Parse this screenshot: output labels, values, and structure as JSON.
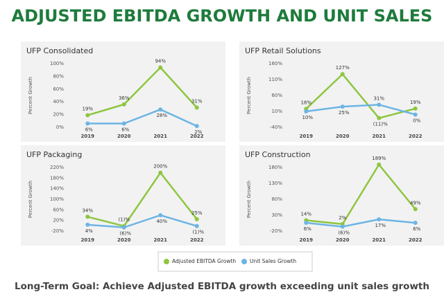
{
  "title": "ADJUSTED EBITDA GROWTH AND UNIT SALES",
  "footer": "Long-Term Goal: Achieve Adjusted EBITDA growth exceeding unit sales growth",
  "chart_data": [
    {
      "type": "line",
      "title": "UFP Consolidated",
      "ylabel": "Percent Growth",
      "categories": [
        "2019",
        "2020",
        "2021",
        "2022"
      ],
      "ylim": [
        0,
        100
      ],
      "yticks": [
        {
          "value": 0,
          "label": "0%"
        },
        {
          "value": 20,
          "label": "20%"
        },
        {
          "value": 40,
          "label": "40%"
        },
        {
          "value": 60,
          "label": "60%"
        },
        {
          "value": 80,
          "label": "80%"
        },
        {
          "value": 100,
          "label": "100%"
        }
      ],
      "grid": false,
      "series": [
        {
          "name": "Adjusted EBITDA Growth",
          "color": "#8dc63f",
          "values": [
            19,
            36,
            94,
            31
          ],
          "value_labels": [
            "19%",
            "36%",
            "94%",
            "31%"
          ]
        },
        {
          "name": "Unit Sales Growth",
          "color": "#6cb4e4",
          "values": [
            6,
            6,
            28,
            2
          ],
          "value_labels": [
            "6%",
            "6%",
            "28%",
            "2%"
          ]
        }
      ]
    },
    {
      "type": "line",
      "title": "UFP Retail Solutions",
      "ylabel": "Percent Growth",
      "categories": [
        "2019",
        "2020",
        "2021",
        "2022"
      ],
      "ylim": [
        -40,
        160
      ],
      "yticks": [
        {
          "value": -40,
          "label": "-40%"
        },
        {
          "value": 10,
          "label": "10%"
        },
        {
          "value": 60,
          "label": "60%"
        },
        {
          "value": 110,
          "label": "110%"
        },
        {
          "value": 160,
          "label": "160%"
        }
      ],
      "grid": false,
      "series": [
        {
          "name": "Adjusted EBITDA Growth",
          "color": "#8dc63f",
          "values": [
            18,
            127,
            -11,
            19
          ],
          "value_labels": [
            "18%",
            "127%",
            "(11)%",
            "19%"
          ]
        },
        {
          "name": "Unit Sales Growth",
          "color": "#6cb4e4",
          "values": [
            10,
            25,
            31,
            0
          ],
          "value_labels": [
            "10%",
            "25%",
            "31%",
            "0%"
          ]
        }
      ]
    },
    {
      "type": "line",
      "title": "UFP Packaging",
      "ylabel": "Percent Growth",
      "categories": [
        "2019",
        "2020",
        "2021",
        "2022"
      ],
      "ylim": [
        -20,
        220
      ],
      "yticks": [
        {
          "value": -20,
          "label": "-20%"
        },
        {
          "value": 20,
          "label": "20%"
        },
        {
          "value": 60,
          "label": "60%"
        },
        {
          "value": 100,
          "label": "100%"
        },
        {
          "value": 140,
          "label": "140%"
        },
        {
          "value": 180,
          "label": "180%"
        },
        {
          "value": 220,
          "label": "220%"
        }
      ],
      "grid": false,
      "series": [
        {
          "name": "Adjusted EBITDA Growth",
          "color": "#8dc63f",
          "values": [
            34,
            -1,
            200,
            25
          ],
          "value_labels": [
            "34%",
            "(1)%",
            "200%",
            "25%"
          ]
        },
        {
          "name": "Unit Sales Growth",
          "color": "#6cb4e4",
          "values": [
            4,
            -6,
            40,
            -1
          ],
          "value_labels": [
            "4%",
            "(6)%",
            "40%",
            "(1)%"
          ]
        }
      ]
    },
    {
      "type": "line",
      "title": "UFP Construction",
      "ylabel": "Percent Growth",
      "categories": [
        "2019",
        "2020",
        "2021",
        "2022"
      ],
      "ylim": [
        -20,
        180
      ],
      "yticks": [
        {
          "value": -20,
          "label": "-20%"
        },
        {
          "value": 30,
          "label": "30%"
        },
        {
          "value": 80,
          "label": "80%"
        },
        {
          "value": 130,
          "label": "130%"
        },
        {
          "value": 180,
          "label": "180%"
        }
      ],
      "grid": false,
      "series": [
        {
          "name": "Adjusted EBITDA Growth",
          "color": "#8dc63f",
          "values": [
            14,
            2,
            189,
            49
          ],
          "value_labels": [
            "14%",
            "2%",
            "189%",
            "49%"
          ]
        },
        {
          "name": "Unit Sales Growth",
          "color": "#6cb4e4",
          "values": [
            6,
            -6,
            17,
            6
          ],
          "value_labels": [
            "6%",
            "(6)%",
            "17%",
            "6%"
          ]
        }
      ]
    }
  ]
}
